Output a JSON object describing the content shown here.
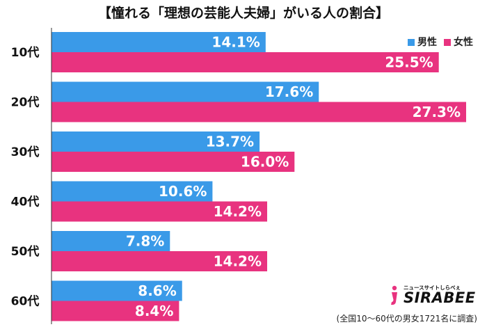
{
  "chart_data": {
    "type": "bar",
    "orientation": "horizontal",
    "title": "【憧れる「理想の芸能人夫婦」がいる人の割合】",
    "categories": [
      "10代",
      "20代",
      "30代",
      "40代",
      "50代",
      "60代"
    ],
    "series": [
      {
        "name": "男性",
        "values": [
          14.1,
          17.6,
          13.7,
          10.6,
          7.8,
          8.6
        ],
        "color": "#3a9ae8"
      },
      {
        "name": "女性",
        "values": [
          25.5,
          27.3,
          16.0,
          14.2,
          14.2,
          8.4
        ],
        "color": "#e8337f"
      }
    ],
    "value_suffix": "%",
    "xlim": [
      0,
      27.3
    ],
    "legend_position": "top-right",
    "grid": false
  },
  "source_note": "(全国10〜60代の男女1721名に調査)",
  "logo": {
    "brand": "SIRABEE",
    "tagline": "ニュースサイトしらべぇ"
  }
}
